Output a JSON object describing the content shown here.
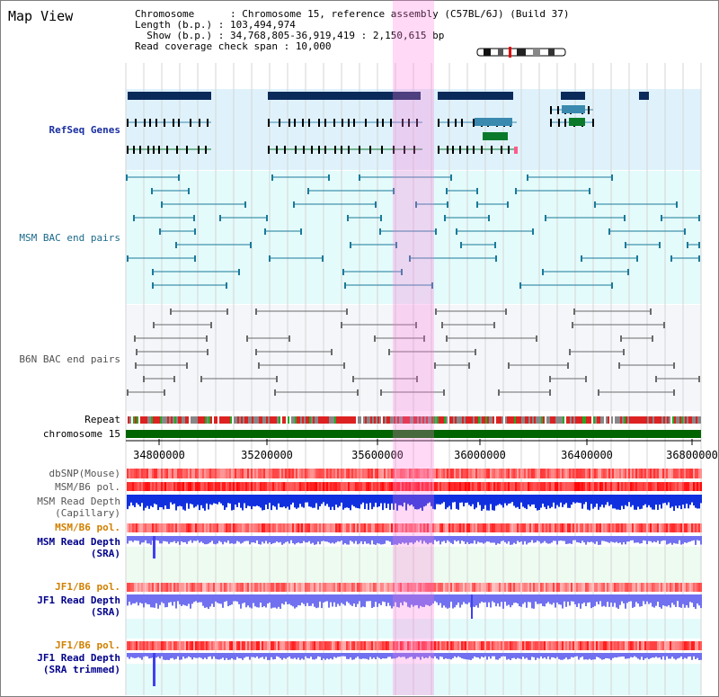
{
  "app": {
    "title": "Map View"
  },
  "header": {
    "chromosome_label": "Chromosome      : ",
    "chromosome_value": "Chromosome 15, reference assembly (C57BL/6J) (Build 37)",
    "length_label": "Length (b.p.) : ",
    "length_value": "103,494,974",
    "show_label": "  Show (b.p.) : ",
    "show_value": "34,768,805-36,919,419 : 2,150,615 bp",
    "coverage_label": "Read coverage check span : ",
    "coverage_value": "10,000"
  },
  "tracks": {
    "refseq": "RefSeq Genes",
    "msm_bac": "MSM BAC end pairs",
    "b6n_bac": "B6N BAC end pairs",
    "repeat": "Repeat",
    "chromosome": "chromosome 15",
    "dbsnp": "dbSNP(Mouse)",
    "msm_b6_pol_1": "MSM/B6 pol.",
    "msm_read_depth_cap_1": "MSM Read Depth",
    "msm_read_depth_cap_2": "(Capillary)",
    "msm_b6_pol_2": "MSM/B6 pol.",
    "msm_read_depth_sra_1": "MSM Read Depth",
    "msm_read_depth_sra_2": "(SRA)",
    "jf1_b6_pol_1": "JF1/B6 pol.",
    "jf1_read_depth_1": "JF1 Read Depth",
    "jf1_read_depth_2": "(SRA)",
    "jf1_b6_pol_2": "JF1/B6 pol.",
    "jf1_read_depth_trim_1": "JF1 Read Depth",
    "jf1_read_depth_trim_2": "(SRA trimmed)"
  },
  "axis": {
    "ticks": [
      "34800000",
      "35200000",
      "35600000",
      "36000000",
      "36400000",
      "36800000"
    ]
  },
  "colors": {
    "refseq_label": "#1a2fa0",
    "msm_bac_label": "#1a6a8a",
    "pol_label": "#d08000",
    "depth_label": "#00008b",
    "refseq_band": "#dff2fb",
    "bac_band": "#e4fbfb",
    "b6n_band": "#f3f6fa",
    "highlight": "#ffd0f0",
    "chrom_bar": "#006400"
  }
}
